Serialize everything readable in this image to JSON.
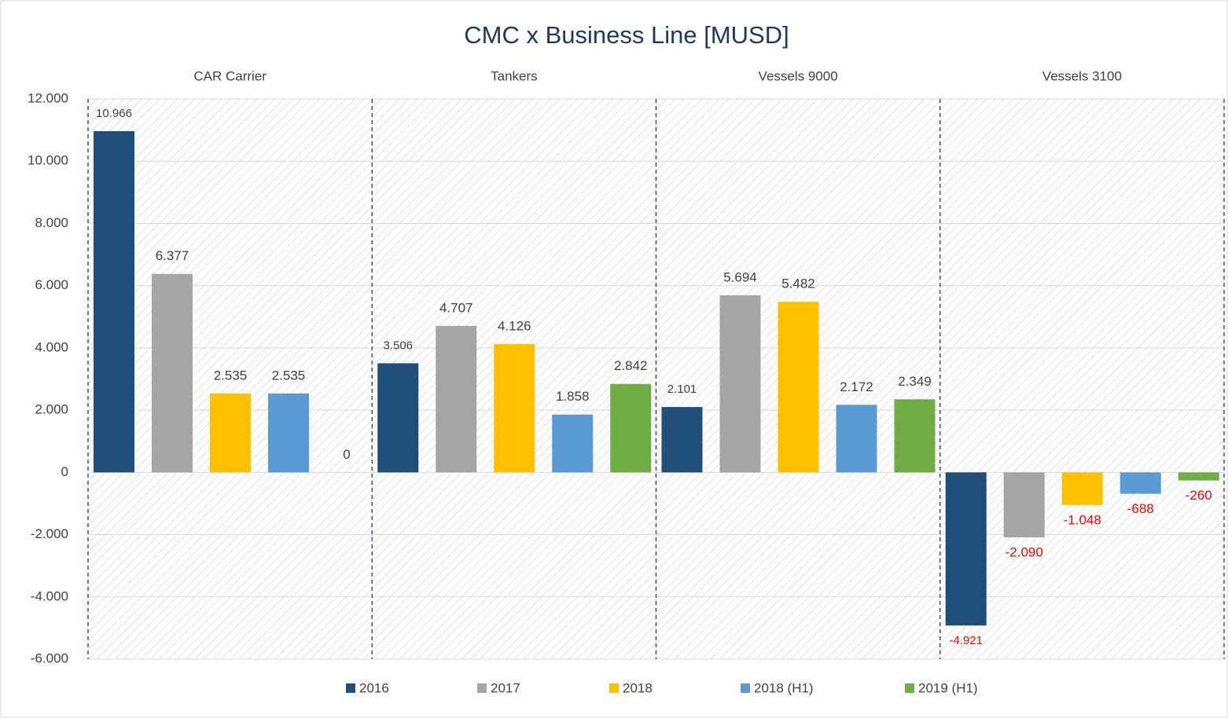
{
  "chart_data": {
    "type": "bar",
    "title": "CMC  x  Business Line [MUSD]",
    "categories": [
      "CAR Carrier",
      "Tankers",
      "Vessels 9000",
      "Vessels 3100"
    ],
    "series": [
      {
        "name": "2016",
        "color": "#1f4e79",
        "values": [
          10966,
          3506,
          2101,
          -4921
        ],
        "value_labels": [
          "10.966",
          "3.506",
          "2.101",
          "-4.921"
        ]
      },
      {
        "name": "2017",
        "color": "#a5a5a5",
        "values": [
          6377,
          4707,
          5694,
          -2090
        ],
        "value_labels": [
          "6.377",
          "4.707",
          "5.694",
          "-2.090"
        ]
      },
      {
        "name": "2018",
        "color": "#ffc000",
        "values": [
          2535,
          4126,
          5482,
          -1048
        ],
        "value_labels": [
          "2.535",
          "4.126",
          "5.482",
          "-1.048"
        ]
      },
      {
        "name": "2018 (H1)",
        "color": "#5b9bd5",
        "values": [
          2535,
          1858,
          2172,
          -688
        ],
        "value_labels": [
          "2.535",
          "1.858",
          "2.172",
          "-688"
        ]
      },
      {
        "name": "2019 (H1)",
        "color": "#70ad47",
        "values": [
          0,
          2842,
          2349,
          -260
        ],
        "value_labels": [
          "0",
          "2.842",
          "2.349",
          "-260"
        ]
      }
    ],
    "ylim": [
      -6000,
      12000
    ],
    "yticks": [
      {
        "value": -6000,
        "label": "-6.000"
      },
      {
        "value": -4000,
        "label": "-4.000"
      },
      {
        "value": -2000,
        "label": "-2.000"
      },
      0,
      {
        "value": 2000,
        "label": "2.000"
      },
      {
        "value": 4000,
        "label": "4.000"
      },
      {
        "value": 6000,
        "label": "6.000"
      },
      {
        "value": 8000,
        "label": "8.000"
      },
      {
        "value": 10000,
        "label": "10.000"
      },
      {
        "value": 12000,
        "label": "12.000"
      }
    ],
    "grid": true,
    "legend": "bottom"
  }
}
